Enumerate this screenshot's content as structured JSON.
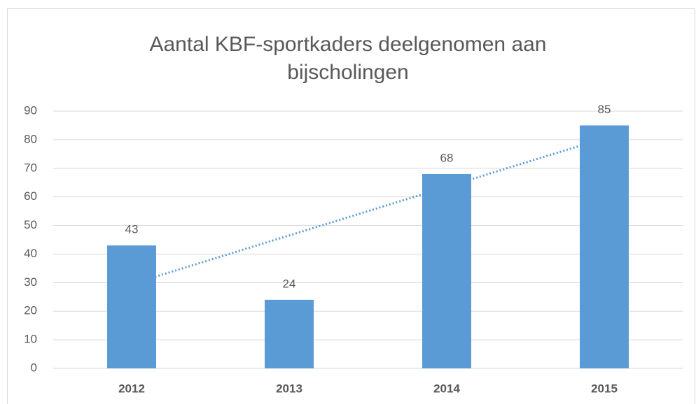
{
  "chart_data": {
    "type": "bar",
    "title": "Aantal KBF-sportkaders deelgenomen aan bijscholingen",
    "categories": [
      "2012",
      "2013",
      "2014",
      "2015"
    ],
    "values": [
      43,
      24,
      68,
      85
    ],
    "color": "#5b9bd5",
    "ylim": [
      0,
      90
    ],
    "yticks": [
      0,
      10,
      20,
      30,
      40,
      50,
      60,
      70,
      80,
      90
    ],
    "grid": true,
    "trendline": "linear",
    "data_labels": true
  }
}
